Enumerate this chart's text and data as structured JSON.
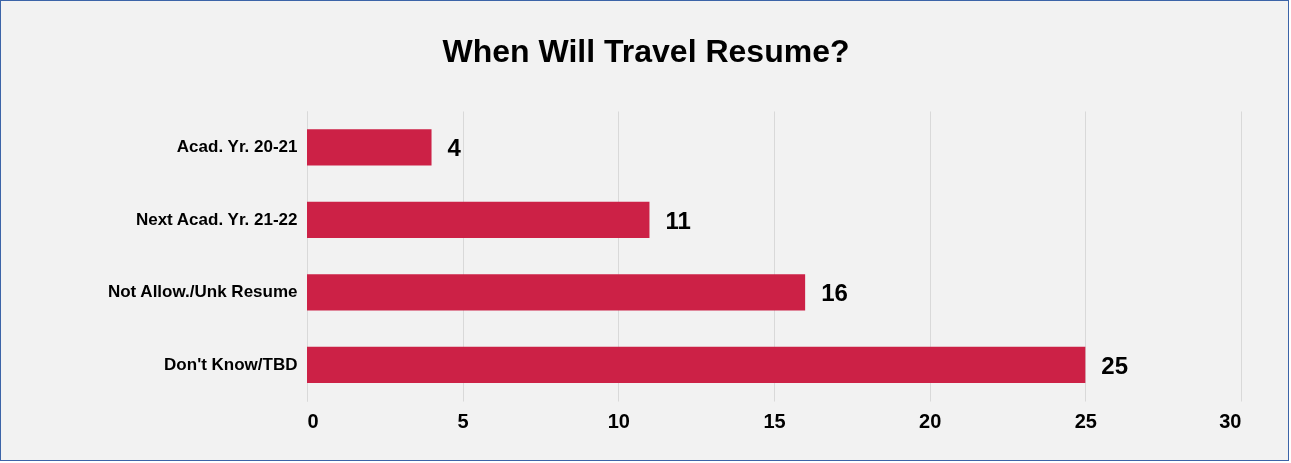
{
  "chart_data": {
    "type": "bar",
    "orientation": "horizontal",
    "title": "When Will Travel Resume?",
    "categories": [
      "Acad. Yr. 20-21",
      "Next Acad. Yr. 21-22",
      "Not Allow./Unk Resume",
      "Don't Know/TBD"
    ],
    "values": [
      4,
      11,
      16,
      25
    ],
    "color": "#cc2146",
    "xlim": [
      0,
      30
    ],
    "xticks": [
      0,
      5,
      10,
      15,
      20,
      25,
      30
    ],
    "grid": "x",
    "data_labels": true
  }
}
